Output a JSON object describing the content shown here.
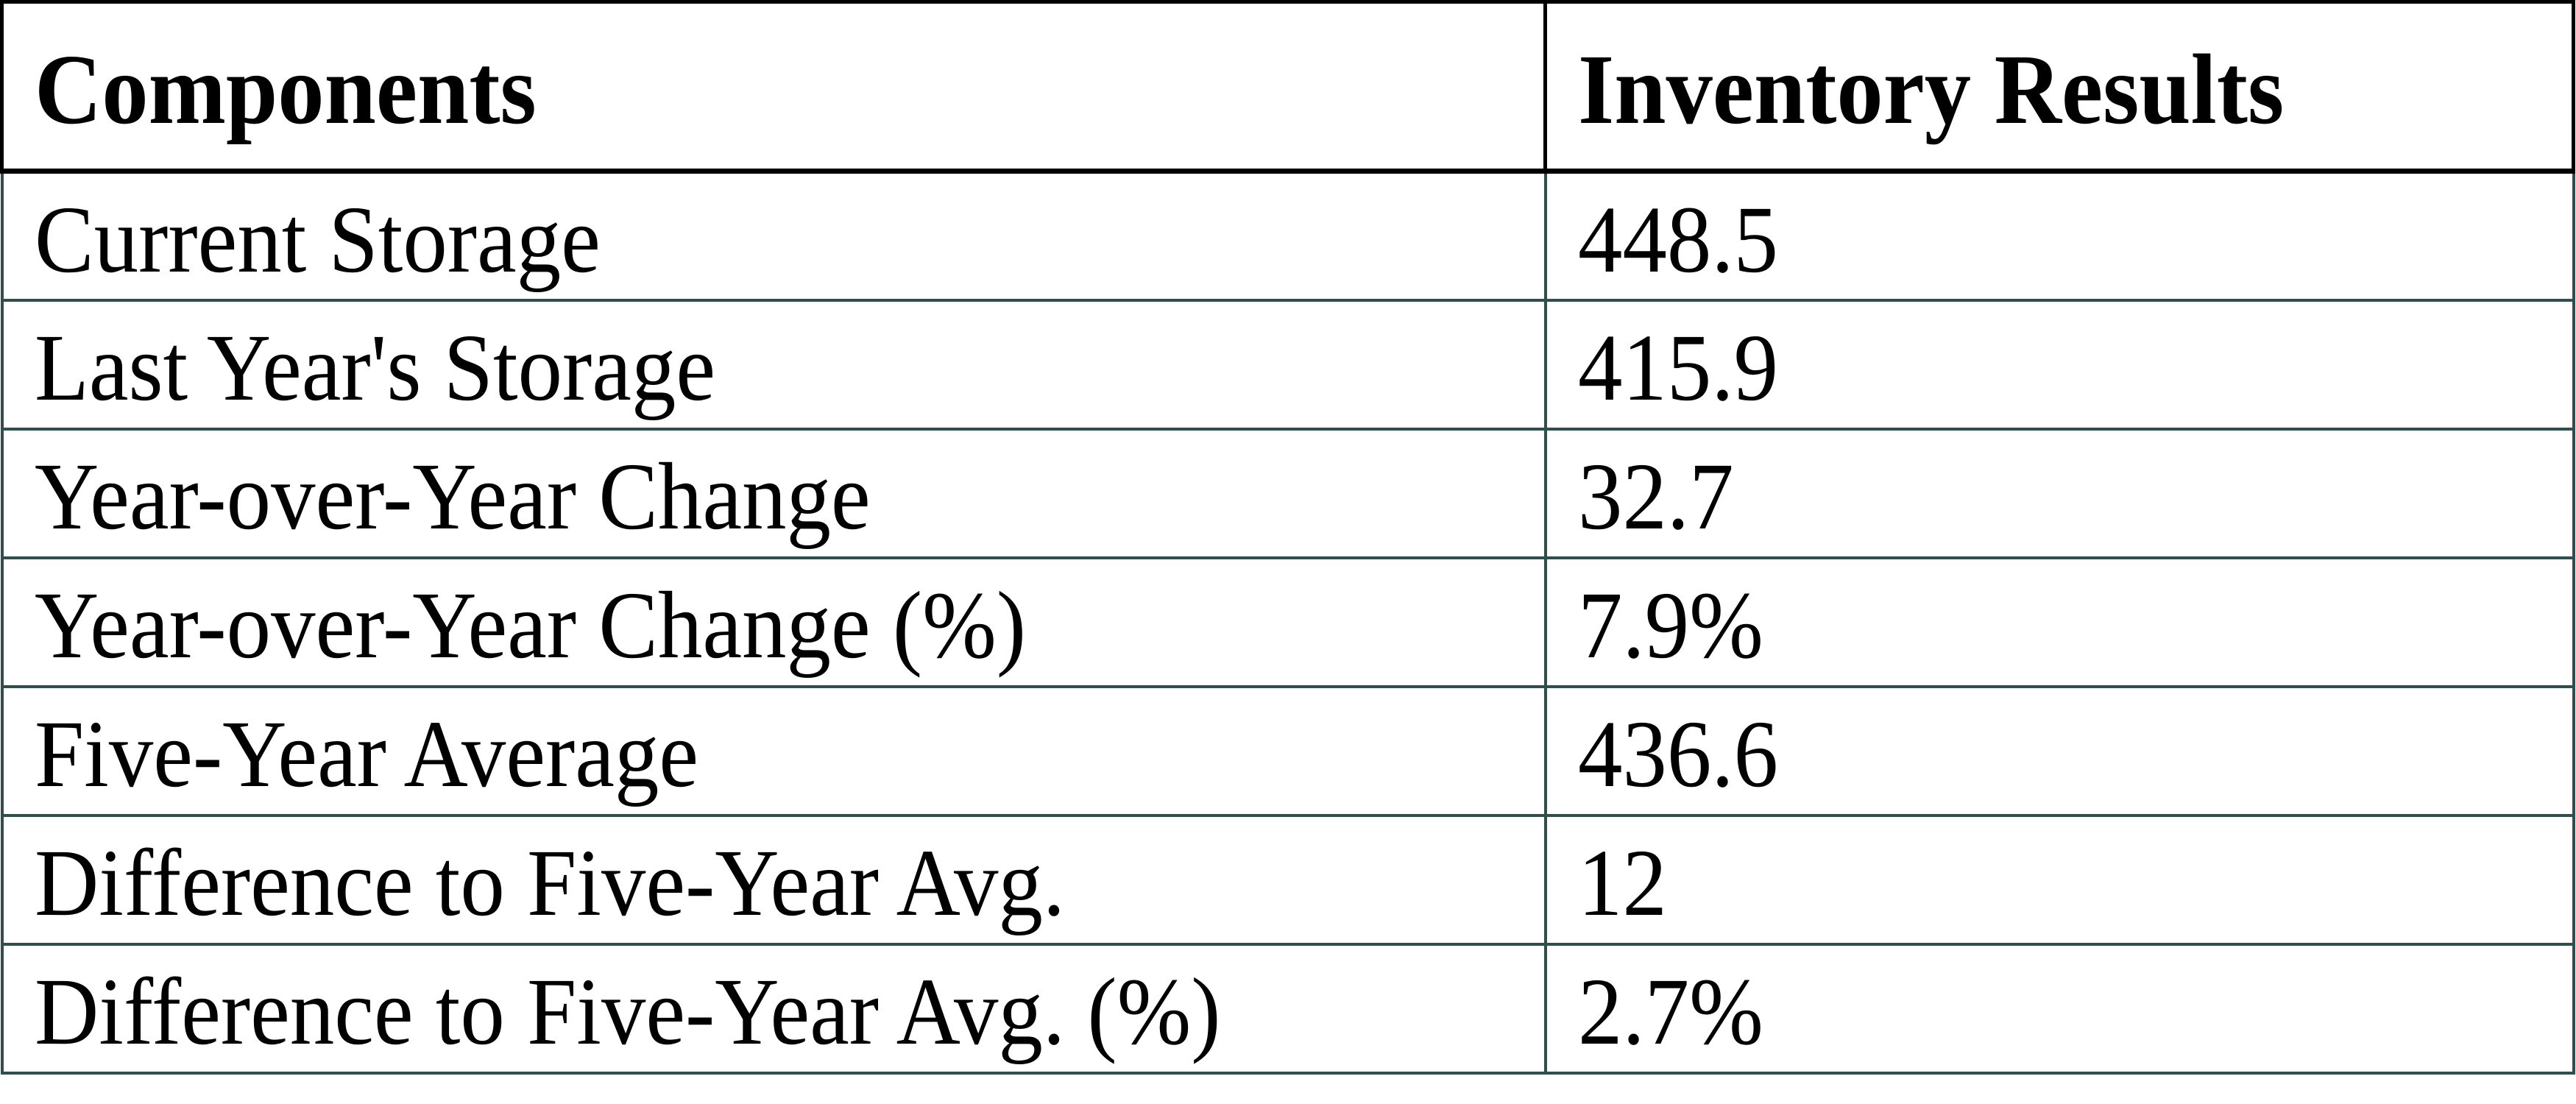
{
  "table": {
    "columns": [
      {
        "label": "Components"
      },
      {
        "label": "Inventory Results"
      }
    ],
    "rows": [
      {
        "label": "Current Storage",
        "value": "448.5"
      },
      {
        "label": "Last Year's Storage",
        "value": "415.9"
      },
      {
        "label": "Year-over-Year Change",
        "value": "32.7"
      },
      {
        "label": "Year-over-Year Change (%)",
        "value": "7.9%"
      },
      {
        "label": "Five-Year Average",
        "value": "436.6"
      },
      {
        "label": "Difference to Five-Year Avg.",
        "value": "12"
      },
      {
        "label": "Difference to Five-Year Avg. (%)",
        "value": "2.7%"
      }
    ]
  },
  "colors": {
    "background": "#FFFFFF",
    "text": "#000000",
    "header_border": "#000000",
    "body_border": "#2F4F4F"
  }
}
